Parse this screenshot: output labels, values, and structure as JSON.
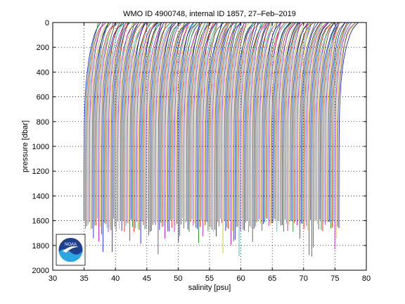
{
  "chart_data": {
    "type": "line",
    "title": "WMO ID 4900748, internal ID 1857, 27–Feb–2019",
    "xlabel": "salinity [psu]",
    "ylabel": "pressure [dbar]",
    "xlim": [
      30,
      80
    ],
    "ylim": [
      2000,
      0
    ],
    "y_reversed": true,
    "xticks": [
      30,
      35,
      40,
      45,
      50,
      55,
      60,
      65,
      70,
      75,
      80
    ],
    "yticks": [
      0,
      200,
      400,
      600,
      800,
      1000,
      1200,
      1400,
      1600,
      1800,
      2000
    ],
    "grid": true,
    "grid_style": "dotted",
    "legend": "none",
    "series_colors": [
      "#0000ff",
      "#008000",
      "#ff0000",
      "#00bfbf",
      "#bf00bf",
      "#bfbf00",
      "#404040"
    ],
    "waterfall": {
      "profile_count": 190,
      "first_offset_psu": 0.0,
      "offset_step_psu": 0.215,
      "base_salinity_profile": [
        {
          "p": 0,
          "s": 37.6
        },
        {
          "p": 50,
          "s": 37.0
        },
        {
          "p": 100,
          "s": 36.6
        },
        {
          "p": 200,
          "s": 36.1
        },
        {
          "p": 300,
          "s": 35.75
        },
        {
          "p": 400,
          "s": 35.5
        },
        {
          "p": 500,
          "s": 35.3
        },
        {
          "p": 600,
          "s": 35.18
        },
        {
          "p": 700,
          "s": 35.1
        },
        {
          "p": 800,
          "s": 35.05
        },
        {
          "p": 1000,
          "s": 35.02
        },
        {
          "p": 1200,
          "s": 35.0
        },
        {
          "p": 1500,
          "s": 34.99
        },
        {
          "p": 1800,
          "s": 34.98
        }
      ],
      "max_pressure_range_dbar": [
        1580,
        1900
      ]
    }
  },
  "logo": {
    "text": "NOAA",
    "colors": {
      "dark_blue": "#1d3f8f",
      "light_blue": "#2aa7e0",
      "white": "#ffffff"
    }
  }
}
